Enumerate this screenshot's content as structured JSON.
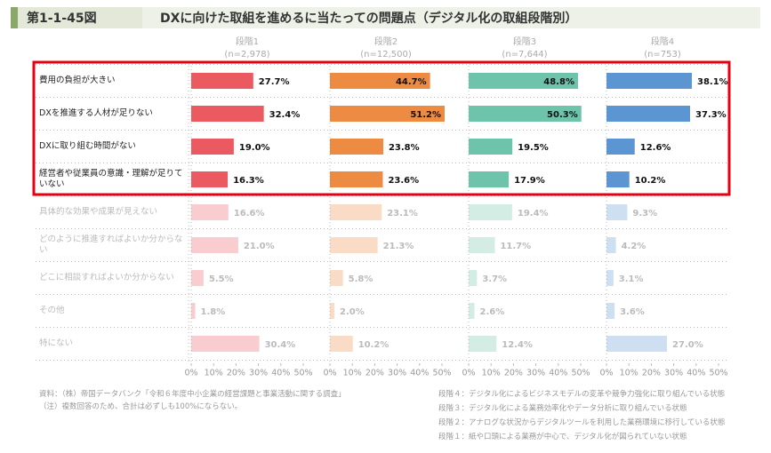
{
  "chart_data": {
    "type": "bar",
    "figure_number": "第1-1-45図",
    "title": "DXに向けた取組を進めるに当たっての問題点（デジタル化の取組段階別）",
    "categories": [
      "費用の負担が大きい",
      "DXを推進する人材が足りない",
      "DXに取り組む時間がない",
      "経営者や従業員の意識・理解が足りていない",
      "具体的な効果や成果が見えない",
      "どのように推進すればよいか分からない",
      "どこに相談すればよいか分からない",
      "その他",
      "特にない"
    ],
    "series": [
      {
        "name": "段階1",
        "n_label": "(n=2,978)",
        "color": "#ea5a60",
        "values": [
          27.7,
          32.4,
          19.0,
          16.3,
          16.6,
          21.0,
          5.5,
          1.8,
          30.4
        ],
        "value_labels": [
          "27.7%",
          "32.4%",
          "19.0%",
          "16.3%",
          "16.6%",
          "21.0%",
          "5.5%",
          "1.8%",
          "30.4%"
        ]
      },
      {
        "name": "段階2",
        "n_label": "(n=12,500)",
        "color": "#ee8b42",
        "values": [
          44.7,
          51.2,
          23.8,
          23.6,
          23.1,
          21.3,
          5.8,
          2.0,
          10.2
        ],
        "value_labels": [
          "44.7%",
          "51.2%",
          "23.8%",
          "23.6%",
          "23.1%",
          "21.3%",
          "5.8%",
          "2.0%",
          "10.2%"
        ]
      },
      {
        "name": "段階3",
        "n_label": "(n=7,644)",
        "color": "#6dc4aa",
        "values": [
          48.8,
          50.3,
          19.5,
          17.9,
          19.4,
          11.7,
          3.7,
          2.6,
          12.4
        ],
        "value_labels": [
          "48.8%",
          "50.3%",
          "19.5%",
          "17.9%",
          "19.4%",
          "11.7%",
          "3.7%",
          "2.6%",
          "12.4%"
        ]
      },
      {
        "name": "段階4",
        "n_label": "(n=753)",
        "color": "#5b96d2",
        "values": [
          38.1,
          37.3,
          12.6,
          10.2,
          9.3,
          4.2,
          3.1,
          3.6,
          27.0
        ],
        "value_labels": [
          "38.1%",
          "37.3%",
          "12.6%",
          "10.2%",
          "9.3%",
          "4.2%",
          "3.1%",
          "3.6%",
          "27.0%"
        ]
      }
    ],
    "xlim": [
      0,
      50
    ],
    "xticks": [
      {
        "value": 0,
        "label": "0%"
      },
      {
        "value": 10,
        "label": "10%"
      },
      {
        "value": 20,
        "label": "20%"
      },
      {
        "value": 30,
        "label": "30%"
      },
      {
        "value": 40,
        "label": "40%"
      },
      {
        "value": 50,
        "label": "50%"
      }
    ],
    "notes": [
      "資料：（株）帝国データバンク「令和６年度中小企業の経営課題と事業活動に関する調査」",
      "（注）複数回答のため、合計は必ずしも100%にならない。"
    ],
    "stage_notes": [
      "段階４：デジタル化によるビジネスモデルの変革や競争力強化に取り組んでいる状態",
      "段階３：デジタル化による業務効率化やデータ分析に取り組んでいる状態",
      "段階２：アナログな状況からデジタルツールを利用した業務環境に移行している状態",
      "段階１：紙や口頭による業務が中心で、デジタル化が図られていない状態"
    ]
  }
}
